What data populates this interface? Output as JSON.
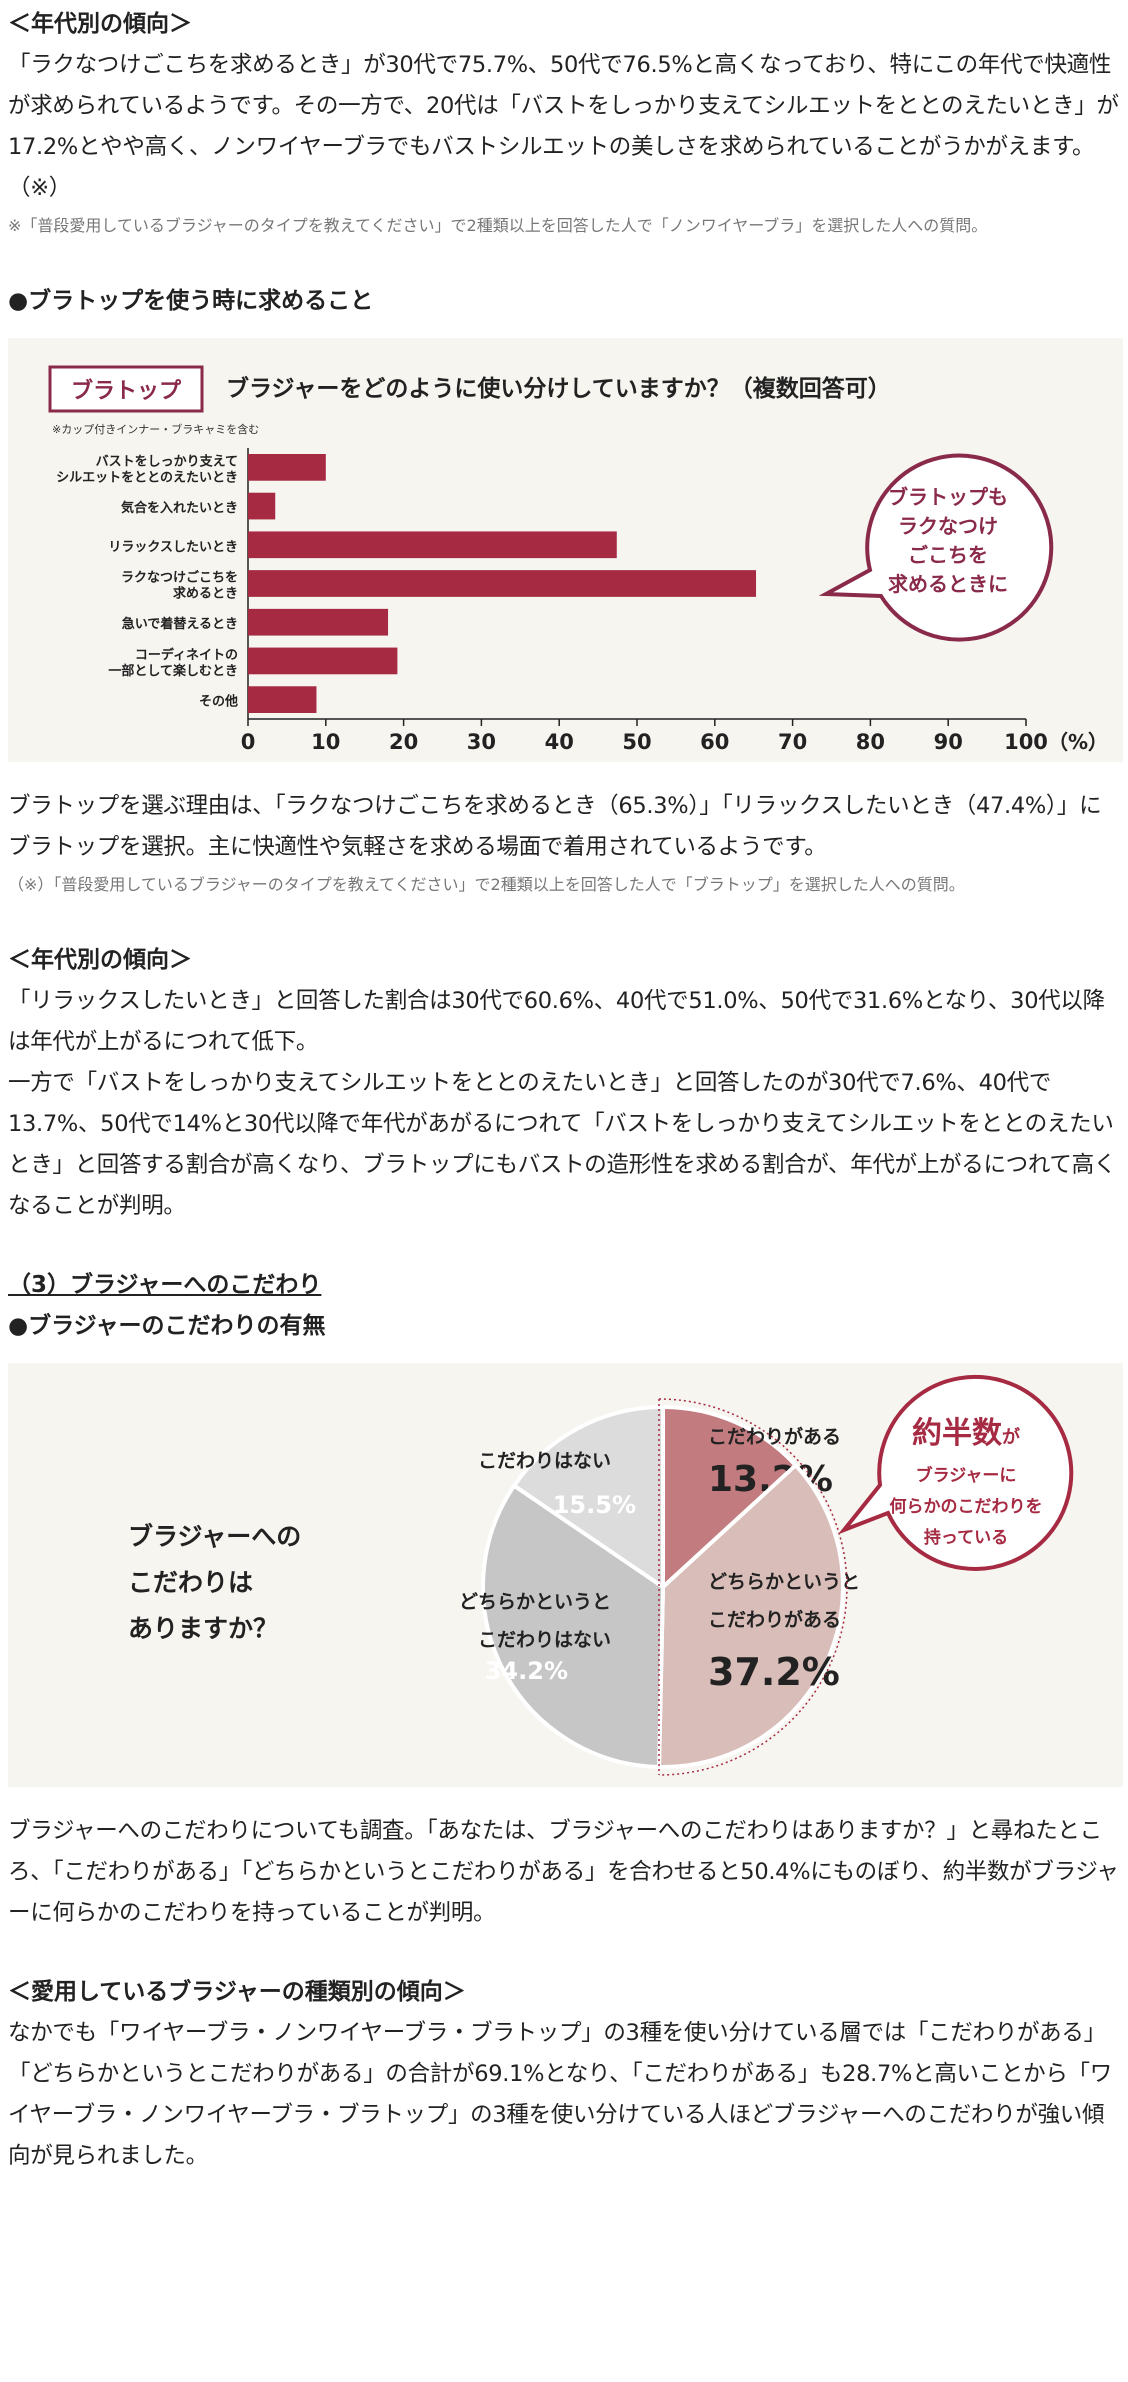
{
  "sec1": {
    "heading": "＜年代別の傾向＞",
    "para": "「ラクなつけごこちを求めるとき」が30代で75.7%、50代で76.5%と高くなっており、特にこの年代で快適性が求められているようです。その一方で、20代は「バストをしっかり支えてシルエットをととのえたいとき」が17.2%とやや高く、ノンワイヤーブラでもバストシルエットの美しさを求められていることがうかがえます。（※）",
    "note": "※「普段愛用しているブラジャーのタイプを教えてください」で2種類以上を回答した人で「ノンワイヤーブラ」を選択した人への質問。"
  },
  "sec2": {
    "heading": "●ブラトップを使う時に求めること",
    "para": "ブラトップを選ぶ理由は、「ラクなつけごこちを求めるとき（65.3%）」「リラックスしたいとき（47.4%）」にブラトップを選択。主に快適性や気軽さを求める場面で着用されているようです。",
    "note": "（※）「普段愛用しているブラジャーのタイプを教えてください」で2種類以上を回答した人で「ブラトップ」を選択した人への質問。"
  },
  "sec3": {
    "heading": "＜年代別の傾向＞",
    "para1": "「リラックスしたいとき」と回答した割合は30代で60.6%、40代で51.0%、50代で31.6%となり、30代以降は年代が上がるにつれて低下。",
    "para2": "一方で「バストをしっかり支えてシルエットをととのえたいとき」と回答したのが30代で7.6%、40代で13.7%、50代で14%と30代以降で年代があがるにつれて「バストをしっかり支えてシルエットをととのえたいとき」と回答する割合が高くなり、ブラトップにもバストの造形性を求める割合が、年代が上がるにつれて高くなることが判明。"
  },
  "sec4": {
    "heading": "（3）ブラジャーへのこだわり",
    "subheading": "●ブラジャーのこだわりの有無",
    "para": "ブラジャーへのこだわりについても調査。「あなたは、ブラジャーへのこだわりはありますか？」と尋ねたところ、「こだわりがある」「どちらかというとこだわりがある」を合わせると50.4%にものぼり、約半数がブラジャーに何らかのこだわりを持っていることが判明。"
  },
  "sec5": {
    "heading": "＜愛用しているブラジャーの種類別の傾向＞",
    "para": "なかでも「ワイヤーブラ・ノンワイヤーブラ・ブラトップ」の3種を使い分けている層では「こだわりがある」「どちらかというとこだわりがある」の合計が69.1%となり、「こだわりがある」も28.7%と高いことから「ワイヤーブラ・ノンワイヤーブラ・ブラトップ」の3種を使い分けている人ほどブラジャーへのこだわりが強い傾向が見られました。"
  },
  "colors": {
    "accent": "#a52a42",
    "bg": "#f7f5f0"
  },
  "chart_data": [
    {
      "type": "bar",
      "tag": "ブラトップ",
      "title": "ブラジャーをどのように使い分けしていますか？（複数回答可）",
      "subnote": "※カップ付きインナー・ブラキャミを含む",
      "categories": [
        [
          "バストをしっかり支えて",
          "シルエットをととのえたいとき"
        ],
        [
          "気合を入れたいとき"
        ],
        [
          "リラックスしたいとき"
        ],
        [
          "ラクなつけごこちを",
          "求めるとき"
        ],
        [
          "急いで着替えるとき"
        ],
        [
          "コーディネイトの",
          "一部として楽しむとき"
        ],
        [
          "その他"
        ]
      ],
      "values": [
        10,
        3.5,
        47.4,
        65.3,
        18,
        19.2,
        8.8
      ],
      "xlim": [
        0,
        100
      ],
      "ticks": [
        "0",
        "10",
        "20",
        "30",
        "40",
        "50",
        "60",
        "70",
        "80",
        "90",
        "100"
      ],
      "unit": "（%）",
      "callout": [
        "ブラトップも",
        "ラクなつけ",
        "ごこちを",
        "求めるときに"
      ]
    },
    {
      "type": "pie",
      "question": [
        "ブラジャーへの",
        "こだわりは",
        "ありますか？"
      ],
      "slices": [
        {
          "label": [
            "こだわりがある"
          ],
          "value": 13.2,
          "display": "13.2%",
          "color": "#c27b7e"
        },
        {
          "label": [
            "どちらかというと",
            "こだわりがある"
          ],
          "value": 37.2,
          "display": "37.2%",
          "color": "#d9bdb8"
        },
        {
          "label": [
            "どちらかというと",
            "こだわりはない"
          ],
          "value": 34.2,
          "display": "34.2%",
          "color": "#c6c6c6"
        },
        {
          "label": [
            "こだわりはない"
          ],
          "value": 15.5,
          "display": "15.5%",
          "color": "#dcdcdc"
        }
      ],
      "callout": {
        "big": "約半数",
        "small": "が",
        "lines": [
          "ブラジャーに",
          "何らかのこだわりを",
          "持っている"
        ]
      }
    }
  ]
}
